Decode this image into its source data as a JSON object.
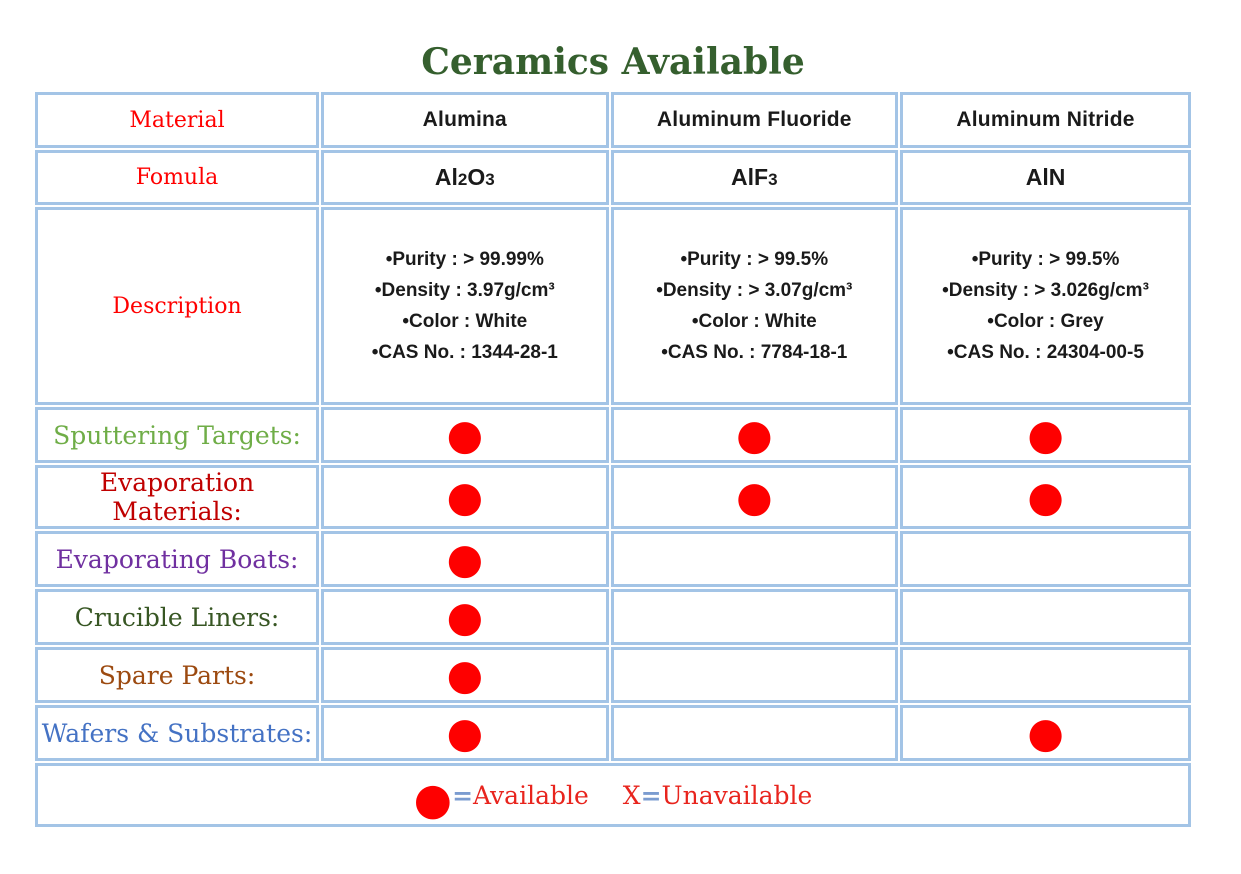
{
  "title": "Ceramics Available",
  "headers": {
    "material": "Material",
    "formula": "Fomula",
    "description": "Description"
  },
  "materials": [
    {
      "name": "Alumina",
      "formula": "Al2O3",
      "desc": [
        "•Purity : > 99.99%",
        "•Density : 3.97g/cm³",
        "•Color : White",
        "•CAS No. : 1344-28-1"
      ]
    },
    {
      "name": "Aluminum Fluoride",
      "formula": "AlF3",
      "desc": [
        "•Purity : > 99.5%",
        "•Density : > 3.07g/cm³",
        "•Color : White",
        "•CAS No. : 7784-18-1"
      ]
    },
    {
      "name": "Aluminum Nitride",
      "formula": "AlN",
      "desc": [
        "•Purity : > 99.5%",
        "•Density : > 3.026g/cm³",
        "•Color : Grey",
        "•CAS No. : 24304-00-5"
      ]
    }
  ],
  "categories": [
    {
      "label": "Sputtering Targets:",
      "color": "#6fad47",
      "dots": [
        "●",
        "●",
        "●"
      ]
    },
    {
      "label": "Evaporation Materials:",
      "color": "#c00000",
      "dots": [
        "●",
        "●",
        "●"
      ]
    },
    {
      "label": "Evaporating Boats:",
      "color": "#7030a0",
      "dots": [
        "●",
        "",
        ""
      ]
    },
    {
      "label": "Crucible Liners:",
      "color": "#375623",
      "dots": [
        "●",
        "",
        ""
      ]
    },
    {
      "label": "Spare Parts:",
      "color": "#9c4a10",
      "dots": [
        "●",
        "",
        ""
      ]
    },
    {
      "label": "Wafers & Substrates:",
      "color": "#4472c4",
      "dots": [
        "●",
        "",
        "●"
      ]
    }
  ],
  "legend": {
    "dot": "●",
    "eq": "=",
    "available": "Available",
    "x": "X",
    "unavailable": "Unavailable"
  },
  "colors": {
    "border": "#a3c4e6",
    "title_green": "#355f2e",
    "header_red": "#ff0000",
    "text_black": "#1a1a1a",
    "dot_red": "#fe0000",
    "legend_red": "#e8241d",
    "equals_blue": "#7b9cd0"
  }
}
